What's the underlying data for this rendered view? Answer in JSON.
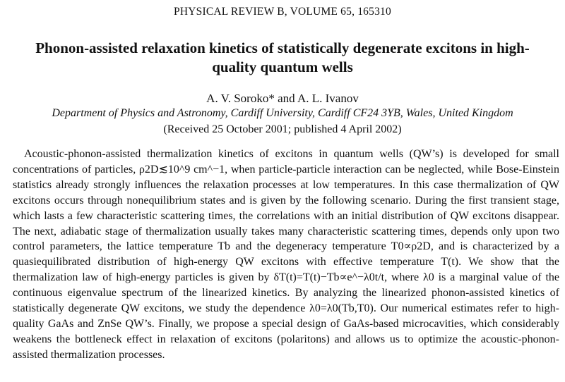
{
  "journal": "PHYSICAL REVIEW B, VOLUME 65, 165310",
  "title": "Phonon-assisted relaxation kinetics of statistically degenerate excitons in high-quality quantum wells",
  "authors": "A. V. Soroko* and A. L. Ivanov",
  "affiliation": "Department of Physics and Astronomy, Cardiff University, Cardiff CF24 3YB, Wales, United Kingdom",
  "received": "(Received 25 October 2001; published 4 April 2002)",
  "abstract": "Acoustic-phonon-assisted thermalization kinetics of excitons in quantum wells (QW’s) is developed for small concentrations of particles, ρ2D≲10^9 cm^−1, when particle-particle interaction can be neglected, while Bose-Einstein statistics already strongly influences the relaxation processes at low temperatures. In this case thermalization of QW excitons occurs through nonequilibrium states and is given by the following scenario. During the first transient stage, which lasts a few characteristic scattering times, the correlations with an initial distribution of QW excitons disappear. The next, adiabatic stage of thermalization usually takes many characteristic scattering times, depends only upon two control parameters, the lattice temperature Tb and the degeneracy temperature T0∝ρ2D, and is characterized by a quasiequilibrated distribution of high-energy QW excitons with effective temperature T(t). We show that the thermalization law of high-energy particles is given by δT(t)=T(t)−Tb∝e^−λ0t/t, where λ0 is a marginal value of the continuous eigenvalue spectrum of the linearized kinetics. By analyzing the linearized phonon-assisted kinetics of statistically degenerate QW excitons, we study the dependence λ0=λ0(Tb,T0). Our numerical estimates refer to high-quality GaAs and ZnSe QW’s. Finally, we propose a special design of GaAs-based microcavities, which considerably weakens the bottleneck effect in relaxation of excitons (polaritons) and allows us to optimize the acoustic-phonon-assisted thermalization processes."
}
